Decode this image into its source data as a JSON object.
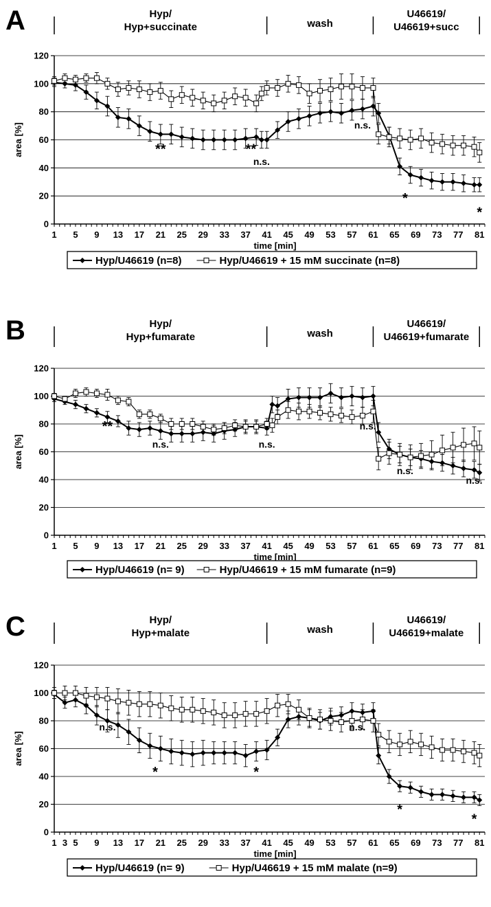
{
  "chart_data": [
    {
      "type": "line",
      "panel": "A",
      "phases": [
        {
          "lines": [
            "Hyp/",
            "Hyp+succinate"
          ],
          "x_start": 1,
          "x_end": 41
        },
        {
          "lines": [
            "wash"
          ],
          "x_start": 41,
          "x_end": 61
        },
        {
          "lines": [
            "U46619/",
            "U46619+succ"
          ],
          "x_start": 61,
          "x_end": 81
        }
      ],
      "xlabel": "time [min]",
      "ylabel": "area [%]",
      "xlim": [
        1,
        82
      ],
      "ylim": [
        0,
        120
      ],
      "yticks": [
        0,
        20,
        40,
        60,
        80,
        100,
        120
      ],
      "xticks": [
        1,
        5,
        9,
        13,
        17,
        21,
        25,
        29,
        33,
        37,
        41,
        45,
        49,
        53,
        57,
        61,
        65,
        69,
        73,
        77,
        81
      ],
      "grid": true,
      "x": [
        1,
        3,
        5,
        7,
        9,
        11,
        13,
        15,
        17,
        19,
        21,
        23,
        25,
        27,
        29,
        31,
        33,
        35,
        37,
        39,
        40,
        41,
        43,
        45,
        47,
        49,
        51,
        53,
        55,
        57,
        59,
        61,
        62,
        64,
        66,
        68,
        70,
        72,
        74,
        76,
        78,
        80,
        81
      ],
      "series": [
        {
          "name": "Hyp/U46619 (n=8)",
          "marker": "diamond-filled",
          "values": [
            101,
            100,
            99,
            94,
            88,
            84,
            76,
            75,
            70,
            66,
            64,
            64,
            62,
            61,
            60,
            60,
            60,
            60,
            61,
            62,
            60,
            60,
            67,
            73,
            75,
            77,
            79,
            80,
            79,
            81,
            82,
            84,
            79,
            63,
            41,
            35,
            33,
            31,
            30,
            30,
            29,
            28,
            28
          ],
          "errors": [
            3,
            3,
            4,
            5,
            6,
            7,
            7,
            7,
            7,
            7,
            7,
            7,
            7,
            7,
            7,
            7,
            7,
            7,
            7,
            6,
            6,
            6,
            6,
            7,
            7,
            7,
            7,
            7,
            7,
            7,
            7,
            7,
            7,
            6,
            6,
            6,
            6,
            6,
            6,
            6,
            6,
            5,
            5
          ]
        },
        {
          "name": "Hyp/U46619 + 15 mM succinate (n=8)",
          "marker": "square-open",
          "values": [
            102,
            104,
            103,
            104,
            104,
            100,
            96,
            97,
            96,
            94,
            95,
            89,
            92,
            90,
            88,
            86,
            88,
            91,
            90,
            86,
            93,
            97,
            97,
            100,
            99,
            93,
            95,
            96,
            98,
            98,
            97,
            97,
            64,
            62,
            61,
            60,
            61,
            58,
            57,
            56,
            56,
            55,
            51
          ],
          "errors": [
            3,
            3,
            3,
            3,
            4,
            4,
            5,
            5,
            6,
            6,
            6,
            6,
            6,
            6,
            6,
            6,
            6,
            6,
            6,
            6,
            5,
            5,
            6,
            6,
            6,
            7,
            8,
            8,
            9,
            9,
            8,
            7,
            7,
            7,
            7,
            7,
            7,
            7,
            7,
            7,
            7,
            7,
            7
          ]
        }
      ],
      "annotations": [
        {
          "text": "**",
          "x": 21,
          "y": 55,
          "kind": "star"
        },
        {
          "text": "**",
          "x": 38,
          "y": 55,
          "kind": "star"
        },
        {
          "text": "n.s.",
          "x": 40,
          "y": 44,
          "kind": "text"
        },
        {
          "text": "n.s.",
          "x": 59,
          "y": 70,
          "kind": "text"
        },
        {
          "text": "*",
          "x": 67,
          "y": 20,
          "kind": "star"
        },
        {
          "text": "*",
          "x": 81,
          "y": 10,
          "kind": "star"
        }
      ]
    },
    {
      "type": "line",
      "panel": "B",
      "phases": [
        {
          "lines": [
            "Hyp/",
            "Hyp+fumarate"
          ],
          "x_start": 1,
          "x_end": 41
        },
        {
          "lines": [
            "wash"
          ],
          "x_start": 41,
          "x_end": 61
        },
        {
          "lines": [
            "U46619/",
            "U46619+fumarate"
          ],
          "x_start": 61,
          "x_end": 81
        }
      ],
      "xlabel": "time [min]",
      "ylabel": "area [%]",
      "xlim": [
        1,
        82
      ],
      "ylim": [
        0,
        120
      ],
      "yticks": [
        0,
        20,
        40,
        60,
        80,
        100,
        120
      ],
      "xticks": [
        1,
        5,
        9,
        13,
        17,
        21,
        25,
        29,
        33,
        37,
        41,
        45,
        49,
        53,
        57,
        61,
        65,
        69,
        73,
        77,
        81
      ],
      "grid": true,
      "x": [
        1,
        3,
        5,
        7,
        9,
        11,
        13,
        15,
        17,
        19,
        21,
        23,
        25,
        27,
        29,
        31,
        33,
        35,
        37,
        39,
        41,
        42,
        43,
        45,
        47,
        49,
        51,
        53,
        55,
        57,
        59,
        61,
        62,
        64,
        66,
        68,
        70,
        72,
        74,
        76,
        78,
        80,
        81
      ],
      "series": [
        {
          "name": "Hyp/U46619 (n= 9)",
          "marker": "diamond-filled",
          "values": [
            98,
            96,
            94,
            91,
            88,
            85,
            82,
            77,
            76,
            77,
            75,
            73,
            73,
            73,
            74,
            73,
            75,
            76,
            78,
            78,
            77,
            94,
            93,
            98,
            99,
            99,
            99,
            102,
            99,
            100,
            99,
            100,
            74,
            62,
            58,
            56,
            55,
            53,
            52,
            50,
            48,
            47,
            45
          ],
          "errors": [
            2,
            2,
            3,
            3,
            3,
            4,
            4,
            5,
            5,
            5,
            6,
            6,
            6,
            6,
            6,
            6,
            6,
            5,
            5,
            5,
            5,
            6,
            6,
            7,
            7,
            7,
            7,
            7,
            7,
            7,
            7,
            7,
            7,
            7,
            6,
            6,
            6,
            6,
            6,
            6,
            6,
            6,
            6
          ]
        },
        {
          "name": "Hyp/U46619 + 15 mM fumarate (n=9)",
          "marker": "square-open",
          "values": [
            100,
            98,
            102,
            103,
            102,
            101,
            97,
            96,
            87,
            87,
            84,
            80,
            80,
            80,
            78,
            76,
            77,
            79,
            78,
            78,
            80,
            79,
            85,
            90,
            89,
            89,
            88,
            87,
            86,
            85,
            86,
            89,
            55,
            59,
            58,
            56,
            57,
            58,
            61,
            63,
            65,
            66,
            63
          ],
          "errors": [
            2,
            2,
            3,
            3,
            3,
            4,
            3,
            3,
            3,
            3,
            3,
            4,
            4,
            4,
            4,
            4,
            4,
            4,
            4,
            4,
            4,
            5,
            5,
            6,
            6,
            5,
            5,
            5,
            5,
            5,
            6,
            8,
            8,
            8,
            8,
            9,
            9,
            10,
            11,
            11,
            12,
            12,
            12
          ]
        }
      ],
      "annotations": [
        {
          "text": "**",
          "x": 11,
          "y": 80,
          "kind": "star"
        },
        {
          "text": "n.s.",
          "x": 21,
          "y": 65,
          "kind": "text"
        },
        {
          "text": "n.s.",
          "x": 41,
          "y": 65,
          "kind": "text"
        },
        {
          "text": "n.s.",
          "x": 60,
          "y": 78,
          "kind": "text"
        },
        {
          "text": "n.s.",
          "x": 67,
          "y": 46,
          "kind": "text"
        },
        {
          "text": "n.s.",
          "x": 80,
          "y": 39,
          "kind": "text"
        }
      ]
    },
    {
      "type": "line",
      "panel": "C",
      "phases": [
        {
          "lines": [
            "Hyp/",
            "Hyp+malate"
          ],
          "x_start": 1,
          "x_end": 41
        },
        {
          "lines": [
            "wash"
          ],
          "x_start": 41,
          "x_end": 61
        },
        {
          "lines": [
            "U46619/",
            "U46619+malate"
          ],
          "x_start": 61,
          "x_end": 81
        }
      ],
      "xlabel": "time [min]",
      "ylabel": "area [%]",
      "xlim": [
        1,
        82
      ],
      "ylim": [
        0,
        120
      ],
      "yticks": [
        0,
        20,
        40,
        60,
        80,
        100,
        120
      ],
      "xticks": [
        1,
        3,
        5,
        9,
        13,
        17,
        21,
        25,
        29,
        33,
        37,
        41,
        45,
        49,
        53,
        57,
        61,
        65,
        69,
        73,
        77,
        81
      ],
      "grid": true,
      "x": [
        1,
        3,
        5,
        7,
        9,
        11,
        13,
        15,
        17,
        19,
        21,
        23,
        25,
        27,
        29,
        31,
        33,
        35,
        37,
        39,
        41,
        43,
        45,
        47,
        49,
        51,
        53,
        55,
        57,
        59,
        61,
        62,
        64,
        66,
        68,
        70,
        72,
        74,
        76,
        78,
        80,
        81
      ],
      "series": [
        {
          "name": "Hyp/U46619 (n= 9)",
          "marker": "diamond-filled",
          "values": [
            99,
            93,
            95,
            91,
            84,
            80,
            77,
            72,
            66,
            62,
            60,
            58,
            57,
            56,
            57,
            57,
            57,
            57,
            55,
            58,
            59,
            68,
            81,
            83,
            82,
            80,
            83,
            84,
            87,
            86,
            87,
            55,
            40,
            33,
            32,
            29,
            27,
            27,
            26,
            25,
            25,
            23
          ],
          "errors": [
            3,
            4,
            5,
            6,
            7,
            8,
            9,
            9,
            9,
            9,
            9,
            9,
            9,
            9,
            9,
            8,
            8,
            8,
            8,
            7,
            7,
            6,
            6,
            6,
            6,
            6,
            6,
            6,
            6,
            6,
            6,
            6,
            5,
            4,
            4,
            4,
            4,
            4,
            4,
            4,
            4,
            4
          ]
        },
        {
          "name": "Hyp/U46619 + 15 mM malate (n=9)",
          "marker": "square-open",
          "values": [
            100,
            100,
            100,
            98,
            97,
            96,
            94,
            93,
            92,
            92,
            91,
            89,
            88,
            88,
            87,
            86,
            84,
            84,
            85,
            85,
            87,
            91,
            92,
            88,
            82,
            81,
            80,
            79,
            80,
            81,
            80,
            70,
            65,
            63,
            65,
            63,
            61,
            59,
            59,
            58,
            57,
            55
          ],
          "errors": [
            4,
            5,
            5,
            6,
            7,
            8,
            9,
            9,
            9,
            9,
            9,
            9,
            9,
            9,
            9,
            9,
            9,
            9,
            9,
            9,
            9,
            8,
            7,
            7,
            7,
            7,
            7,
            7,
            7,
            7,
            8,
            8,
            8,
            8,
            8,
            8,
            8,
            8,
            8,
            8,
            8,
            8
          ]
        }
      ],
      "annotations": [
        {
          "text": "n.s.",
          "x": 11,
          "y": 75,
          "kind": "text"
        },
        {
          "text": "*",
          "x": 20,
          "y": 45,
          "kind": "star"
        },
        {
          "text": "*",
          "x": 39,
          "y": 45,
          "kind": "star"
        },
        {
          "text": "n.s.",
          "x": 58,
          "y": 75,
          "kind": "text"
        },
        {
          "text": "*",
          "x": 66,
          "y": 18,
          "kind": "star"
        },
        {
          "text": "*",
          "x": 80,
          "y": 11,
          "kind": "star"
        }
      ]
    }
  ]
}
